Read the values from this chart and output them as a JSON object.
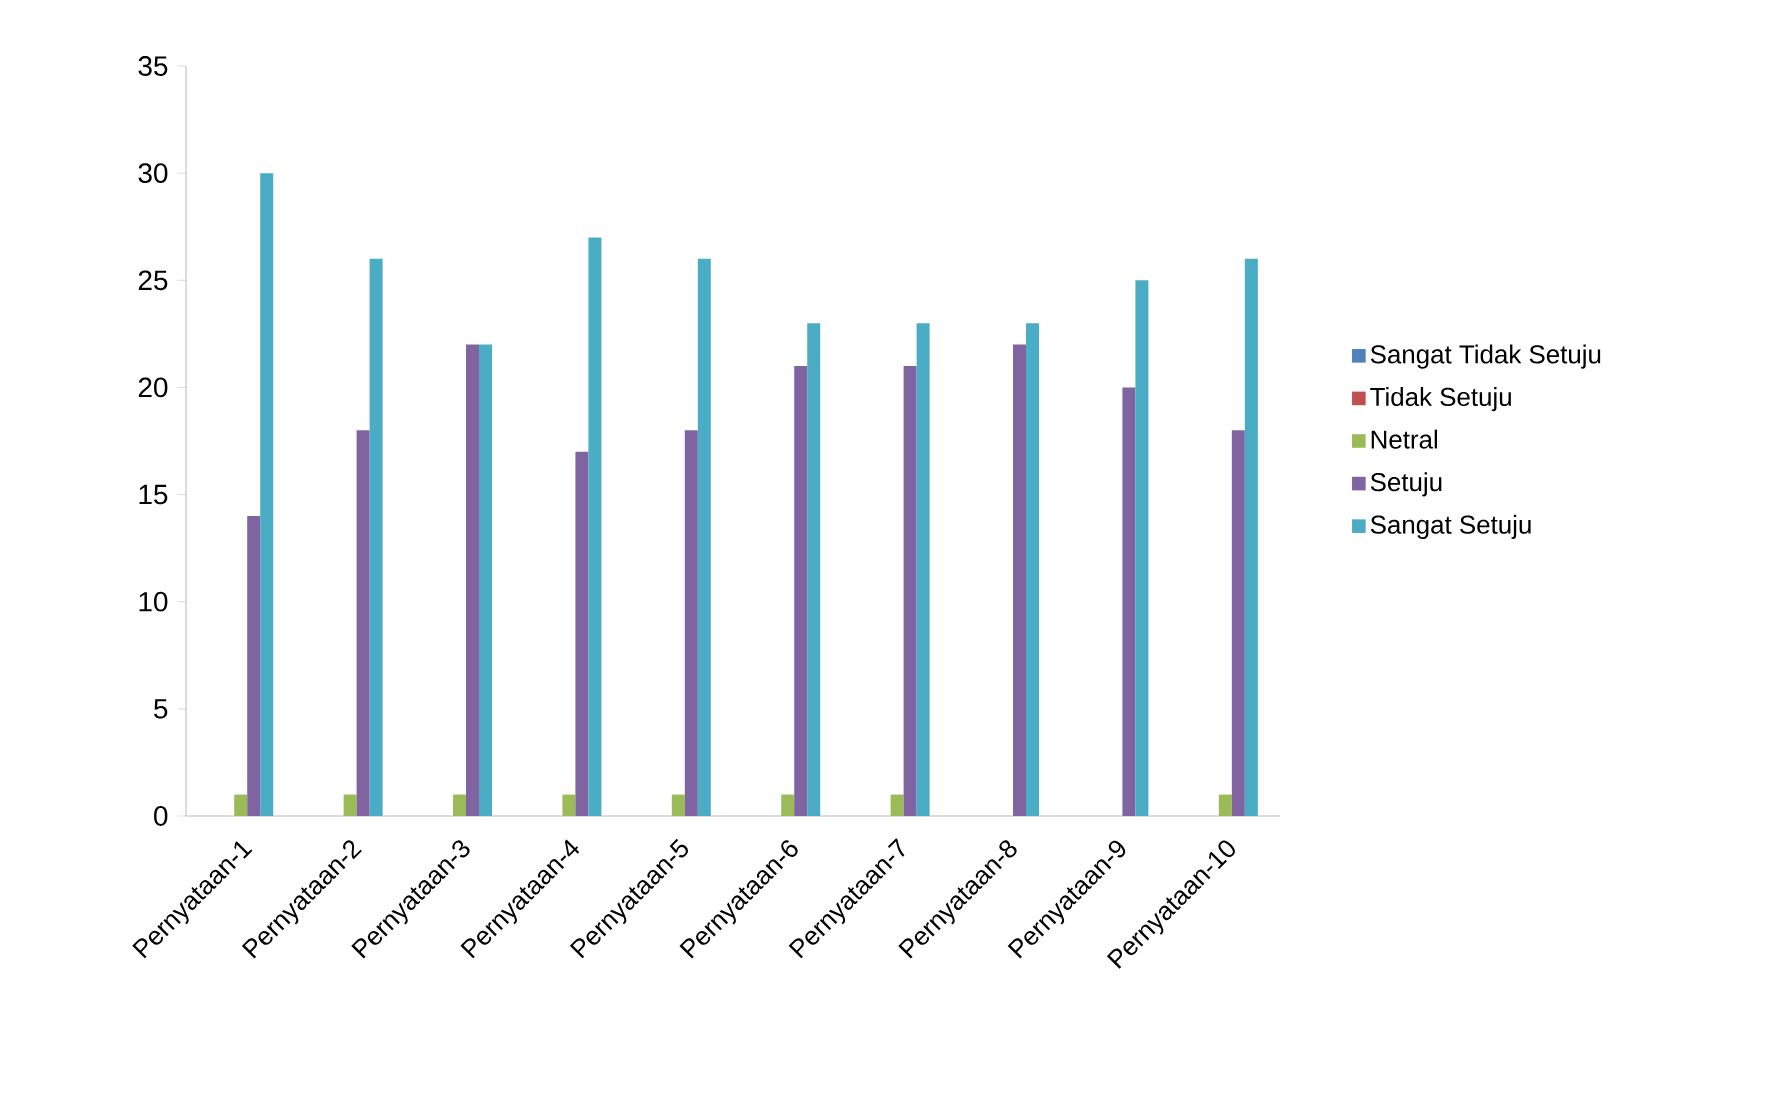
{
  "chart_data": {
    "type": "bar",
    "categories": [
      "Pernyataan-1",
      "Pernyataan-2",
      "Pernyataan-3",
      "Pernyataan-4",
      "Pernyataan-5",
      "Pernyataan-6",
      "Pernyataan-7",
      "Pernyataan-8",
      "Pernyataan-9",
      "Pernyataan-10"
    ],
    "series": [
      {
        "name": "Sangat Tidak Setuju",
        "color": "#4f81bd",
        "values": [
          0,
          0,
          0,
          0,
          0,
          0,
          0,
          0,
          0,
          0
        ]
      },
      {
        "name": "Tidak Setuju",
        "color": "#c0504d",
        "values": [
          0,
          0,
          0,
          0,
          0,
          0,
          0,
          0,
          0,
          0
        ]
      },
      {
        "name": "Netral",
        "color": "#9bbb59",
        "values": [
          1,
          1,
          1,
          1,
          1,
          1,
          1,
          0,
          0,
          1
        ]
      },
      {
        "name": "Setuju",
        "color": "#8064a2",
        "values": [
          14,
          18,
          22,
          17,
          18,
          21,
          21,
          22,
          20,
          18
        ]
      },
      {
        "name": "Sangat Setuju",
        "color": "#4bacc6",
        "values": [
          30,
          26,
          22,
          27,
          26,
          23,
          23,
          23,
          25,
          26
        ]
      }
    ],
    "ylim": [
      0,
      35
    ],
    "yticks": [
      0,
      5,
      10,
      15,
      20,
      25,
      30,
      35
    ],
    "grid": false,
    "legend": "right"
  }
}
